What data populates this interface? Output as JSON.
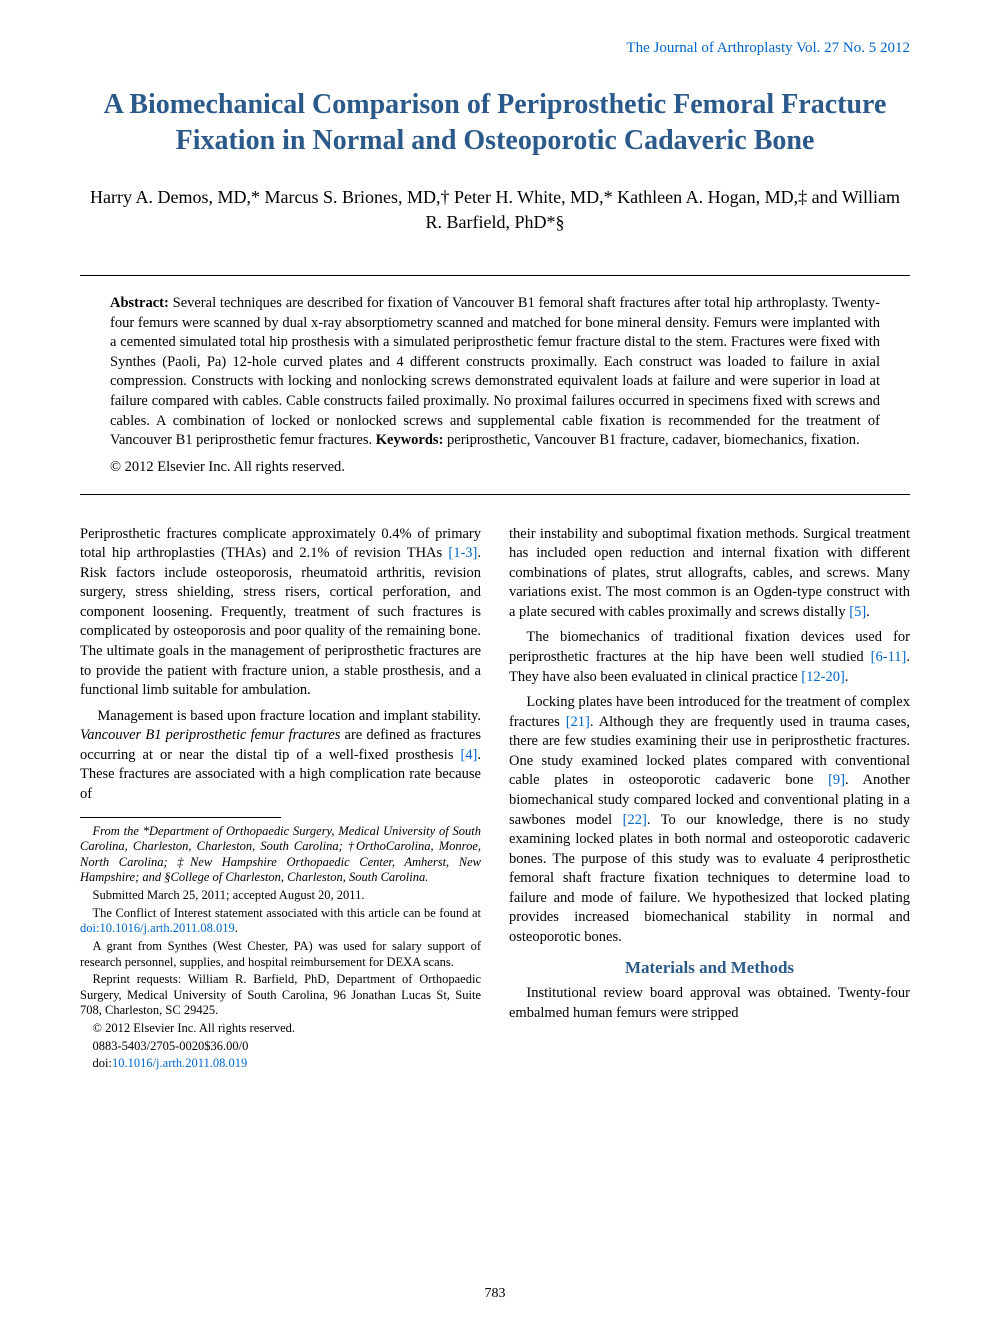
{
  "journal_header": "The Journal of Arthroplasty Vol. 27 No. 5 2012",
  "title": "A Biomechanical Comparison of Periprosthetic Femoral Fracture Fixation in Normal and Osteoporotic Cadaveric Bone",
  "authors": "Harry A. Demos, MD,* Marcus S. Briones, MD,† Peter H. White, MD,* Kathleen A. Hogan, MD,‡ and William R. Barfield, PhD*§",
  "abstract_label": "Abstract:",
  "abstract_text": " Several techniques are described for fixation of Vancouver B1 femoral shaft fractures after total hip arthroplasty. Twenty-four femurs were scanned by dual x-ray absorptiometry scanned and matched for bone mineral density. Femurs were implanted with a cemented simulated total hip prosthesis with a simulated periprosthetic femur fracture distal to the stem. Fractures were fixed with Synthes (Paoli, Pa) 12-hole curved plates and 4 different constructs proximally. Each construct was loaded to failure in axial compression. Constructs with locking and nonlocking screws demonstrated equivalent loads at failure and were superior in load at failure compared with cables. Cable constructs failed proximally. No proximal failures occurred in specimens fixed with screws and cables. A combination of locked or nonlocked screws and supplemental cable fixation is recommended for the treatment of Vancouver B1 periprosthetic femur fractures. ",
  "keywords_label": "Keywords:",
  "keywords_text": " periprosthetic, Vancouver B1 fracture, cadaver, biomechanics, fixation.",
  "abstract_copyright": "© 2012 Elsevier Inc. All rights reserved.",
  "col1": {
    "p1_a": "Periprosthetic fractures complicate approximately 0.4% of primary total hip arthroplasties (THAs) and 2.1% of revision THAs ",
    "p1_ref": "[1-3]",
    "p1_b": ". Risk factors include osteoporosis, rheumatoid arthritis, revision surgery, stress shielding, stress risers, cortical perforation, and component loosening. Frequently, treatment of such fractures is complicated by osteoporosis and poor quality of the remaining bone. The ultimate goals in the management of periprosthetic fractures are to provide the patient with fracture union, a stable prosthesis, and a functional limb suitable for ambulation.",
    "p2_a": "Management is based upon fracture location and implant stability. ",
    "p2_italic": "Vancouver B1 periprosthetic femur fractures",
    "p2_b": " are defined as fractures occurring at or near the distal tip of a well-fixed prosthesis ",
    "p2_ref": "[4]",
    "p2_c": ". These fractures are associated with a high complication rate because of"
  },
  "footnotes": {
    "affil": "From the *Department of Orthopaedic Surgery, Medical University of South Carolina, Charleston, Charleston, South Carolina; †OrthoCarolina, Monroe, North Carolina; ‡New Hampshire Orthopaedic Center, Amherst, New Hampshire; and §College of Charleston, Charleston, South Carolina.",
    "submitted": "Submitted March 25, 2011; accepted August 20, 2011.",
    "coi_a": "The Conflict of Interest statement associated with this article can be found at ",
    "coi_doi": "doi:10.1016/j.arth.2011.08.019",
    "coi_b": ".",
    "grant": "A grant from Synthes (West Chester, PA) was used for salary support of research personnel, supplies, and hospital reimbursement for DEXA scans.",
    "reprint": "Reprint requests: William R. Barfield, PhD, Department of Orthopaedic Surgery, Medical University of South Carolina, 96 Jonathan Lucas St, Suite 708, Charleston, SC 29425.",
    "copyright": "© 2012 Elsevier Inc. All rights reserved.",
    "code": "0883-5403/2705-0020$36.00/0",
    "doi_label": "doi:",
    "doi": "10.1016/j.arth.2011.08.019"
  },
  "col2": {
    "p1_a": "their instability and suboptimal fixation methods. Surgical treatment has included open reduction and internal fixation with different combinations of plates, strut allografts, cables, and screws. Many variations exist. The most common is an Ogden-type construct with a plate secured with cables proximally and screws distally ",
    "p1_ref": "[5]",
    "p1_b": ".",
    "p2_a": "The biomechanics of traditional fixation devices used for periprosthetic fractures at the hip have been well studied ",
    "p2_ref1": "[6-11]",
    "p2_b": ". They have also been evaluated in clinical practice ",
    "p2_ref2": "[12-20]",
    "p2_c": ".",
    "p3_a": "Locking plates have been introduced for the treatment of complex fractures ",
    "p3_ref1": "[21]",
    "p3_b": ". Although they are frequently used in trauma cases, there are few studies examining their use in periprosthetic fractures. One study examined locked plates compared with conventional cable plates in osteoporotic cadaveric bone ",
    "p3_ref2": "[9]",
    "p3_c": ". Another biomechanical study compared locked and conventional plating in a sawbones model ",
    "p3_ref3": "[22]",
    "p3_d": ". To our knowledge, there is no study examining locked plates in both normal and osteoporotic cadaveric bones. The purpose of this study was to evaluate 4 periprosthetic femoral shaft fracture fixation techniques to determine load to failure and mode of failure. We hypothesized that locked plating provides increased biomechanical stability in normal and osteoporotic bones.",
    "methods_head": "Materials and Methods",
    "p4": "Institutional review board approval was obtained. Twenty-four embalmed human femurs were stripped"
  },
  "page_number": "783",
  "colors": {
    "link_blue": "#0066cc",
    "heading_blue": "#2b5a8a",
    "text_black": "#000000",
    "background": "#ffffff"
  },
  "typography": {
    "title_fontsize": 28,
    "author_fontsize": 18,
    "body_fontsize": 14.5,
    "footnote_fontsize": 12.5,
    "font_family": "Times New Roman"
  }
}
